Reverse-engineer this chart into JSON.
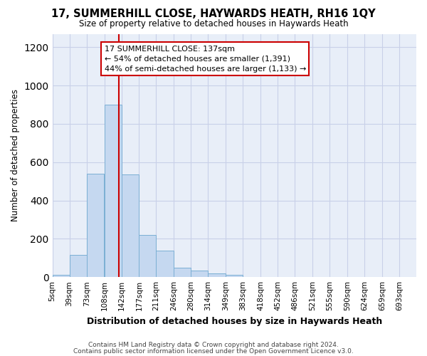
{
  "title": "17, SUMMERHILL CLOSE, HAYWARDS HEATH, RH16 1QY",
  "subtitle": "Size of property relative to detached houses in Haywards Heath",
  "xlabel": "Distribution of detached houses by size in Haywards Heath",
  "ylabel": "Number of detached properties",
  "footer1": "Contains HM Land Registry data © Crown copyright and database right 2024.",
  "footer2": "Contains public sector information licensed under the Open Government Licence v3.0.",
  "bin_labels": [
    "5sqm",
    "39sqm",
    "73sqm",
    "108sqm",
    "142sqm",
    "177sqm",
    "211sqm",
    "246sqm",
    "280sqm",
    "314sqm",
    "349sqm",
    "383sqm",
    "418sqm",
    "452sqm",
    "486sqm",
    "521sqm",
    "555sqm",
    "590sqm",
    "624sqm",
    "659sqm",
    "693sqm"
  ],
  "bin_edges": [
    5,
    39,
    73,
    108,
    142,
    177,
    211,
    246,
    280,
    314,
    349,
    383,
    418,
    452,
    486,
    521,
    555,
    590,
    624,
    659,
    693
  ],
  "bar_heights": [
    10,
    115,
    540,
    900,
    535,
    220,
    140,
    50,
    33,
    20,
    10,
    0,
    0,
    0,
    0,
    0,
    0,
    0,
    0,
    0
  ],
  "bar_color": "#c5d8f0",
  "bar_edgecolor": "#7bafd4",
  "property_line_x": 137,
  "annotation_text": "17 SUMMERHILL CLOSE: 137sqm\n← 54% of detached houses are smaller (1,391)\n44% of semi-detached houses are larger (1,133) →",
  "annotation_box_color": "#ffffff",
  "annotation_box_edgecolor": "#cc0000",
  "vline_color": "#cc0000",
  "grid_color": "#c8d0e8",
  "background_color": "#e8eef8",
  "ylim": [
    0,
    1270
  ],
  "yticks": [
    0,
    200,
    400,
    600,
    800,
    1000,
    1200
  ]
}
